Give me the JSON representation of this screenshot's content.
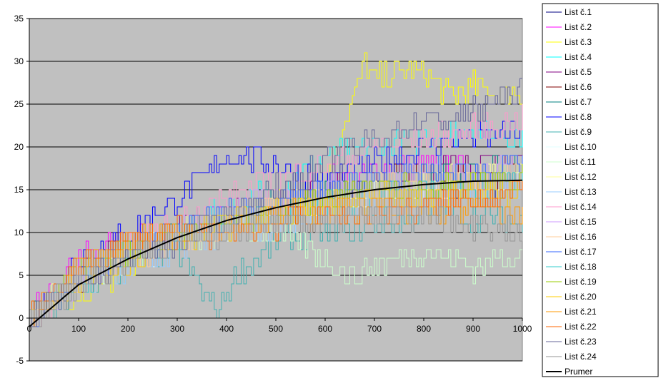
{
  "chart_data": {
    "type": "line",
    "title": "",
    "xlabel": "",
    "ylabel": "",
    "xlim": [
      0,
      1000
    ],
    "ylim": [
      -5,
      35
    ],
    "x_ticks": [
      "0",
      "100",
      "200",
      "300",
      "400",
      "500",
      "600",
      "700",
      "800",
      "900",
      "1000"
    ],
    "y_ticks": [
      "-5",
      "0",
      "5",
      "10",
      "15",
      "20",
      "25",
      "30",
      "35"
    ],
    "grid": "horizontal",
    "legend_position": "right",
    "plot_background": "#c0c0c0",
    "series": [
      {
        "name": "List č.1",
        "color": "#000080",
        "points": [
          [
            0,
            0
          ],
          [
            100,
            4
          ],
          [
            200,
            7
          ],
          [
            300,
            9
          ],
          [
            400,
            11
          ],
          [
            500,
            12
          ],
          [
            600,
            14
          ],
          [
            700,
            15
          ],
          [
            800,
            15
          ],
          [
            900,
            16
          ],
          [
            1000,
            16
          ]
        ]
      },
      {
        "name": "List č.2",
        "color": "#ff00ff",
        "points": [
          [
            0,
            0
          ],
          [
            100,
            7
          ],
          [
            200,
            9
          ],
          [
            300,
            10
          ],
          [
            400,
            12
          ],
          [
            500,
            14
          ],
          [
            600,
            16
          ],
          [
            700,
            17
          ],
          [
            800,
            18
          ],
          [
            900,
            17
          ],
          [
            1000,
            16
          ]
        ]
      },
      {
        "name": "List č.3",
        "color": "#ffff00",
        "points": [
          [
            0,
            0
          ],
          [
            100,
            3
          ],
          [
            200,
            6
          ],
          [
            300,
            9
          ],
          [
            400,
            11
          ],
          [
            500,
            14
          ],
          [
            600,
            17
          ],
          [
            650,
            25
          ],
          [
            680,
            30
          ],
          [
            700,
            28
          ],
          [
            800,
            29
          ],
          [
            850,
            26
          ],
          [
            900,
            27
          ],
          [
            1000,
            26
          ]
        ]
      },
      {
        "name": "List č.4",
        "color": "#00ffff",
        "points": [
          [
            0,
            0
          ],
          [
            100,
            5
          ],
          [
            200,
            8
          ],
          [
            300,
            10
          ],
          [
            400,
            13
          ],
          [
            500,
            15
          ],
          [
            600,
            19
          ],
          [
            700,
            20
          ],
          [
            800,
            21
          ],
          [
            900,
            22
          ],
          [
            1000,
            21
          ]
        ]
      },
      {
        "name": "List č.5",
        "color": "#800080",
        "points": [
          [
            0,
            0
          ],
          [
            100,
            6
          ],
          [
            200,
            9
          ],
          [
            300,
            11
          ],
          [
            400,
            12
          ],
          [
            500,
            13
          ],
          [
            600,
            15
          ],
          [
            700,
            16
          ],
          [
            800,
            17
          ],
          [
            900,
            18
          ],
          [
            1000,
            18
          ]
        ]
      },
      {
        "name": "List č.6",
        "color": "#800000",
        "points": [
          [
            0,
            0
          ],
          [
            100,
            4
          ],
          [
            200,
            7
          ],
          [
            300,
            9
          ],
          [
            400,
            11
          ],
          [
            500,
            13
          ],
          [
            600,
            14
          ],
          [
            700,
            16
          ],
          [
            800,
            17
          ],
          [
            900,
            16
          ],
          [
            1000,
            17
          ]
        ]
      },
      {
        "name": "List č.7",
        "color": "#008080",
        "points": [
          [
            0,
            0
          ],
          [
            100,
            5
          ],
          [
            200,
            8
          ],
          [
            300,
            10
          ],
          [
            400,
            12
          ],
          [
            500,
            14
          ],
          [
            600,
            15
          ],
          [
            700,
            15
          ],
          [
            800,
            16
          ],
          [
            900,
            17
          ],
          [
            1000,
            17
          ]
        ]
      },
      {
        "name": "List č.8",
        "color": "#0000ff",
        "points": [
          [
            0,
            0
          ],
          [
            100,
            7
          ],
          [
            200,
            10
          ],
          [
            300,
            14
          ],
          [
            400,
            19
          ],
          [
            500,
            18
          ],
          [
            600,
            16
          ],
          [
            700,
            18
          ],
          [
            800,
            20
          ],
          [
            900,
            21
          ],
          [
            1000,
            22
          ]
        ]
      },
      {
        "name": "List č.9",
        "color": "#40b0b0",
        "points": [
          [
            0,
            0
          ],
          [
            100,
            3
          ],
          [
            200,
            6
          ],
          [
            300,
            8
          ],
          [
            350,
            3
          ],
          [
            380,
            1
          ],
          [
            420,
            5
          ],
          [
            500,
            9
          ],
          [
            600,
            10
          ],
          [
            700,
            11
          ],
          [
            800,
            12
          ],
          [
            900,
            12
          ],
          [
            1000,
            11
          ]
        ]
      },
      {
        "name": "List č.10",
        "color": "#e0ffff",
        "points": [
          [
            0,
            0
          ],
          [
            100,
            4
          ],
          [
            200,
            7
          ],
          [
            300,
            9
          ],
          [
            400,
            11
          ],
          [
            500,
            12
          ],
          [
            600,
            13
          ],
          [
            700,
            14
          ],
          [
            800,
            15
          ],
          [
            900,
            15
          ],
          [
            1000,
            16
          ]
        ]
      },
      {
        "name": "List č.11",
        "color": "#ccffcc",
        "points": [
          [
            0,
            0
          ],
          [
            100,
            4
          ],
          [
            200,
            7
          ],
          [
            300,
            9
          ],
          [
            400,
            10
          ],
          [
            500,
            10
          ],
          [
            600,
            7
          ],
          [
            650,
            5
          ],
          [
            700,
            6
          ],
          [
            800,
            8
          ],
          [
            900,
            6
          ],
          [
            1000,
            8
          ]
        ]
      },
      {
        "name": "List č.12",
        "color": "#ffff99",
        "points": [
          [
            0,
            0
          ],
          [
            100,
            5
          ],
          [
            200,
            8
          ],
          [
            300,
            10
          ],
          [
            400,
            12
          ],
          [
            500,
            13
          ],
          [
            600,
            14
          ],
          [
            700,
            15
          ],
          [
            800,
            16
          ],
          [
            900,
            16
          ],
          [
            1000,
            17
          ]
        ]
      },
      {
        "name": "List č.13",
        "color": "#99ccff",
        "points": [
          [
            0,
            0
          ],
          [
            100,
            4
          ],
          [
            200,
            6
          ],
          [
            300,
            8
          ],
          [
            400,
            10
          ],
          [
            500,
            11
          ],
          [
            600,
            13
          ],
          [
            700,
            14
          ],
          [
            800,
            14
          ],
          [
            900,
            15
          ],
          [
            1000,
            15
          ]
        ]
      },
      {
        "name": "List č.14",
        "color": "#ff99cc",
        "points": [
          [
            0,
            0
          ],
          [
            100,
            5
          ],
          [
            200,
            8
          ],
          [
            300,
            11
          ],
          [
            400,
            14
          ],
          [
            500,
            16
          ],
          [
            600,
            18
          ],
          [
            700,
            20
          ],
          [
            800,
            21
          ],
          [
            900,
            22
          ],
          [
            1000,
            23
          ]
        ]
      },
      {
        "name": "List č.15",
        "color": "#cc99ff",
        "points": [
          [
            0,
            0
          ],
          [
            100,
            4
          ],
          [
            200,
            7
          ],
          [
            300,
            10
          ],
          [
            400,
            12
          ],
          [
            500,
            14
          ],
          [
            600,
            15
          ],
          [
            700,
            16
          ],
          [
            800,
            17
          ],
          [
            900,
            17
          ],
          [
            1000,
            18
          ]
        ]
      },
      {
        "name": "List č.16",
        "color": "#ffcc99",
        "points": [
          [
            0,
            0
          ],
          [
            100,
            4
          ],
          [
            200,
            7
          ],
          [
            300,
            9
          ],
          [
            400,
            11
          ],
          [
            500,
            13
          ],
          [
            600,
            14
          ],
          [
            700,
            15
          ],
          [
            800,
            16
          ],
          [
            900,
            16
          ],
          [
            1000,
            17
          ]
        ]
      },
      {
        "name": "List č.17",
        "color": "#3366ff",
        "points": [
          [
            0,
            0
          ],
          [
            100,
            5
          ],
          [
            200,
            8
          ],
          [
            300,
            10
          ],
          [
            400,
            12
          ],
          [
            500,
            14
          ],
          [
            600,
            15
          ],
          [
            700,
            16
          ],
          [
            800,
            17
          ],
          [
            900,
            17
          ],
          [
            1000,
            18
          ]
        ]
      },
      {
        "name": "List č.18",
        "color": "#33cccc",
        "points": [
          [
            0,
            0
          ],
          [
            100,
            4
          ],
          [
            200,
            7
          ],
          [
            300,
            9
          ],
          [
            400,
            11
          ],
          [
            500,
            12
          ],
          [
            600,
            13
          ],
          [
            700,
            14
          ],
          [
            800,
            15
          ],
          [
            900,
            15
          ],
          [
            1000,
            16
          ]
        ]
      },
      {
        "name": "List č.19",
        "color": "#99cc00",
        "points": [
          [
            0,
            0
          ],
          [
            100,
            5
          ],
          [
            200,
            8
          ],
          [
            300,
            10
          ],
          [
            400,
            11
          ],
          [
            500,
            12
          ],
          [
            600,
            14
          ],
          [
            700,
            15
          ],
          [
            800,
            15
          ],
          [
            900,
            16
          ],
          [
            1000,
            16
          ]
        ]
      },
      {
        "name": "List č.20",
        "color": "#ffcc00",
        "points": [
          [
            0,
            0
          ],
          [
            100,
            4
          ],
          [
            200,
            7
          ],
          [
            300,
            9
          ],
          [
            400,
            11
          ],
          [
            500,
            12
          ],
          [
            600,
            13
          ],
          [
            700,
            14
          ],
          [
            800,
            14
          ],
          [
            900,
            15
          ],
          [
            1000,
            15
          ]
        ]
      },
      {
        "name": "List č.21",
        "color": "#ff9900",
        "points": [
          [
            0,
            0
          ],
          [
            100,
            6
          ],
          [
            200,
            9
          ],
          [
            300,
            10
          ],
          [
            400,
            11
          ],
          [
            500,
            12
          ],
          [
            600,
            12
          ],
          [
            700,
            13
          ],
          [
            800,
            12
          ],
          [
            900,
            13
          ],
          [
            1000,
            12
          ]
        ]
      },
      {
        "name": "List č.22",
        "color": "#ff6600",
        "points": [
          [
            0,
            0
          ],
          [
            100,
            6
          ],
          [
            200,
            9
          ],
          [
            300,
            10
          ],
          [
            400,
            10
          ],
          [
            500,
            11
          ],
          [
            600,
            12
          ],
          [
            700,
            12
          ],
          [
            800,
            13
          ],
          [
            900,
            14
          ],
          [
            1000,
            15
          ]
        ]
      },
      {
        "name": "List č.23",
        "color": "#666699",
        "points": [
          [
            0,
            0
          ],
          [
            100,
            4
          ],
          [
            200,
            7
          ],
          [
            300,
            9
          ],
          [
            400,
            12
          ],
          [
            500,
            15
          ],
          [
            600,
            18
          ],
          [
            700,
            21
          ],
          [
            800,
            23
          ],
          [
            900,
            24
          ],
          [
            1000,
            27
          ]
        ]
      },
      {
        "name": "List č.24",
        "color": "#969696",
        "points": [
          [
            0,
            0
          ],
          [
            100,
            4
          ],
          [
            200,
            7
          ],
          [
            300,
            9
          ],
          [
            400,
            10
          ],
          [
            500,
            11
          ],
          [
            600,
            11
          ],
          [
            700,
            12
          ],
          [
            800,
            12
          ],
          [
            900,
            11
          ],
          [
            1000,
            10
          ]
        ]
      },
      {
        "name": "Prumer",
        "color": "#000000",
        "width": 2,
        "smooth": true,
        "points": [
          [
            0,
            -1
          ],
          [
            100,
            3.9
          ],
          [
            200,
            6.9
          ],
          [
            300,
            9.4
          ],
          [
            400,
            11.4
          ],
          [
            500,
            12.9
          ],
          [
            600,
            14.1
          ],
          [
            700,
            15.0
          ],
          [
            800,
            15.6
          ],
          [
            900,
            16.0
          ],
          [
            1000,
            16.1
          ]
        ]
      }
    ]
  }
}
